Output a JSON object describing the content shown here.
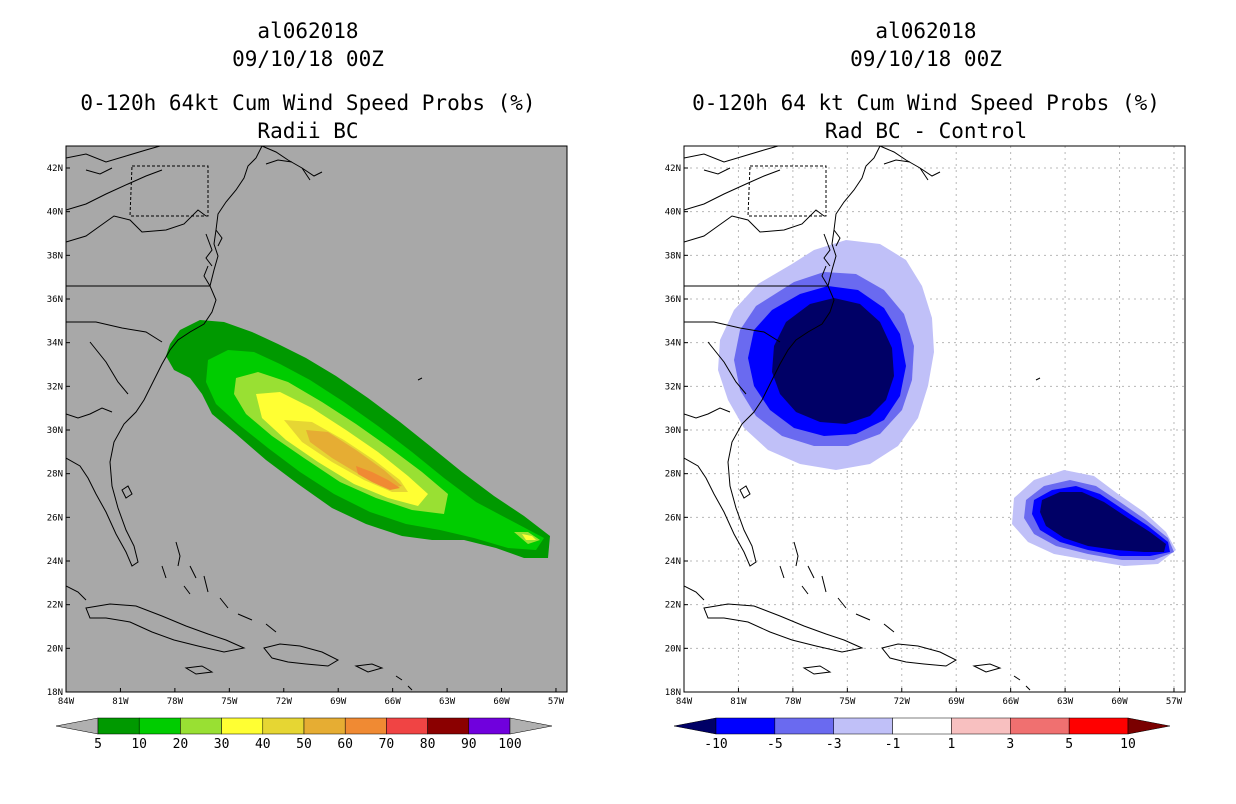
{
  "panels": [
    {
      "id": "left",
      "storm_id": "al062018",
      "datetime": "09/10/18 00Z",
      "title": "0-120h 64kt Cum Wind Speed Probs (%)",
      "subtitle": "Radii BC",
      "background": "#a8a8a8",
      "gridlines": false,
      "colorbar": {
        "labels": [
          "5",
          "10",
          "20",
          "30",
          "40",
          "50",
          "60",
          "70",
          "80",
          "90",
          "100"
        ],
        "colors": [
          "#009900",
          "#00cc00",
          "#99e033",
          "#ffff33",
          "#e6d633",
          "#e6ad33",
          "#f08a33",
          "#f04444",
          "#8b0000",
          "#7000dd"
        ],
        "under_color": "#b0b0b0",
        "over_color": "#b0b0b0"
      },
      "contour_colors": [
        "#009900",
        "#00cc00",
        "#99e033",
        "#ffff33",
        "#e6d633",
        "#e6ad33",
        "#f08a33"
      ]
    },
    {
      "id": "right",
      "storm_id": "al062018",
      "datetime": "09/10/18 00Z",
      "title": "0-120h 64 kt Cum Wind Speed Probs (%)",
      "subtitle": "Rad BC - Control",
      "background": "#ffffff",
      "gridlines": true,
      "colorbar": {
        "labels": [
          "-10",
          "-5",
          "-3",
          "-1",
          "1",
          "3",
          "5",
          "10"
        ],
        "colors": [
          "#0000ff",
          "#6a6af0",
          "#c0c0f8",
          "#ffffff",
          "#f8c0c0",
          "#f07070",
          "#ff0000"
        ],
        "under_color": "#000066",
        "over_color": "#7a0000"
      },
      "contour_colors": [
        "#c0c0f8",
        "#6a6af0",
        "#0000ff",
        "#000066"
      ]
    }
  ],
  "map": {
    "lat_labels": [
      "42N",
      "40N",
      "38N",
      "36N",
      "34N",
      "32N",
      "30N",
      "28N",
      "26N",
      "24N",
      "22N",
      "20N",
      "18N"
    ],
    "lon_labels": [
      "84W",
      "81W",
      "78W",
      "75W",
      "72W",
      "69W",
      "66W",
      "63W",
      "60W",
      "57W"
    ]
  }
}
